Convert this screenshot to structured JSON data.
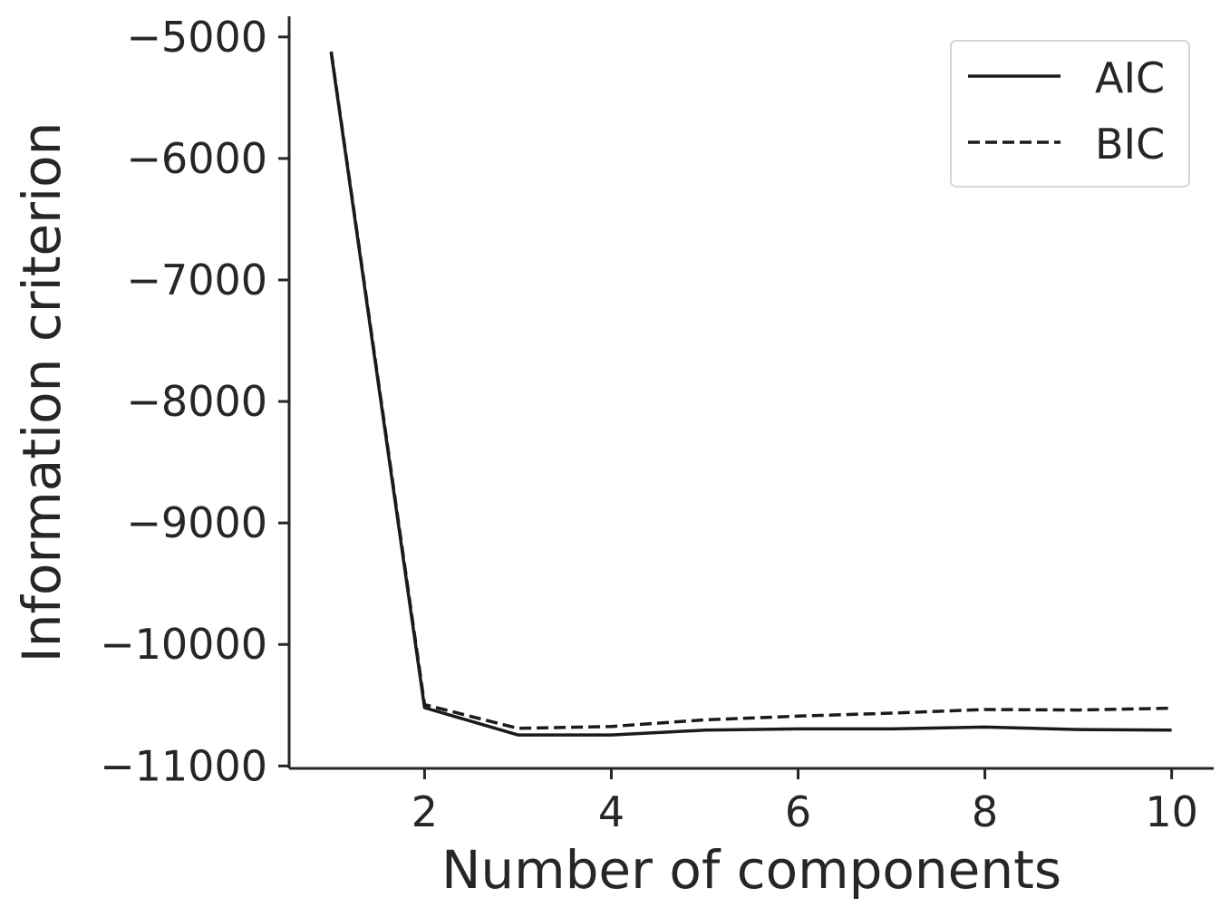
{
  "chart_data": {
    "type": "line",
    "title": "",
    "xlabel": "Number of components",
    "ylabel": "Information criterion",
    "xlim": [
      0.55,
      10.45
    ],
    "ylim": [
      -11020,
      -4830
    ],
    "xticks": [
      2,
      4,
      6,
      8,
      10
    ],
    "xtick_labels": [
      "2",
      "4",
      "6",
      "8",
      "10"
    ],
    "yticks": [
      -5000,
      -6000,
      -7000,
      -8000,
      -9000,
      -10000,
      -11000
    ],
    "ytick_labels": [
      "−5000",
      "−6000",
      "−7000",
      "−8000",
      "−9000",
      "−10000",
      "−11000"
    ],
    "grid": false,
    "legend_position": "top-right",
    "x": [
      1,
      2,
      3,
      4,
      5,
      6,
      7,
      8,
      9,
      10
    ],
    "series": [
      {
        "name": "AIC",
        "style": "solid",
        "color": "#1a1a1a",
        "values": [
          -5130,
          -10520,
          -10745,
          -10745,
          -10705,
          -10695,
          -10695,
          -10680,
          -10700,
          -10705
        ]
      },
      {
        "name": "BIC",
        "style": "dashed",
        "color": "#1a1a1a",
        "values": [
          -5120,
          -10495,
          -10690,
          -10675,
          -10620,
          -10590,
          -10565,
          -10535,
          -10540,
          -10525
        ]
      }
    ]
  }
}
